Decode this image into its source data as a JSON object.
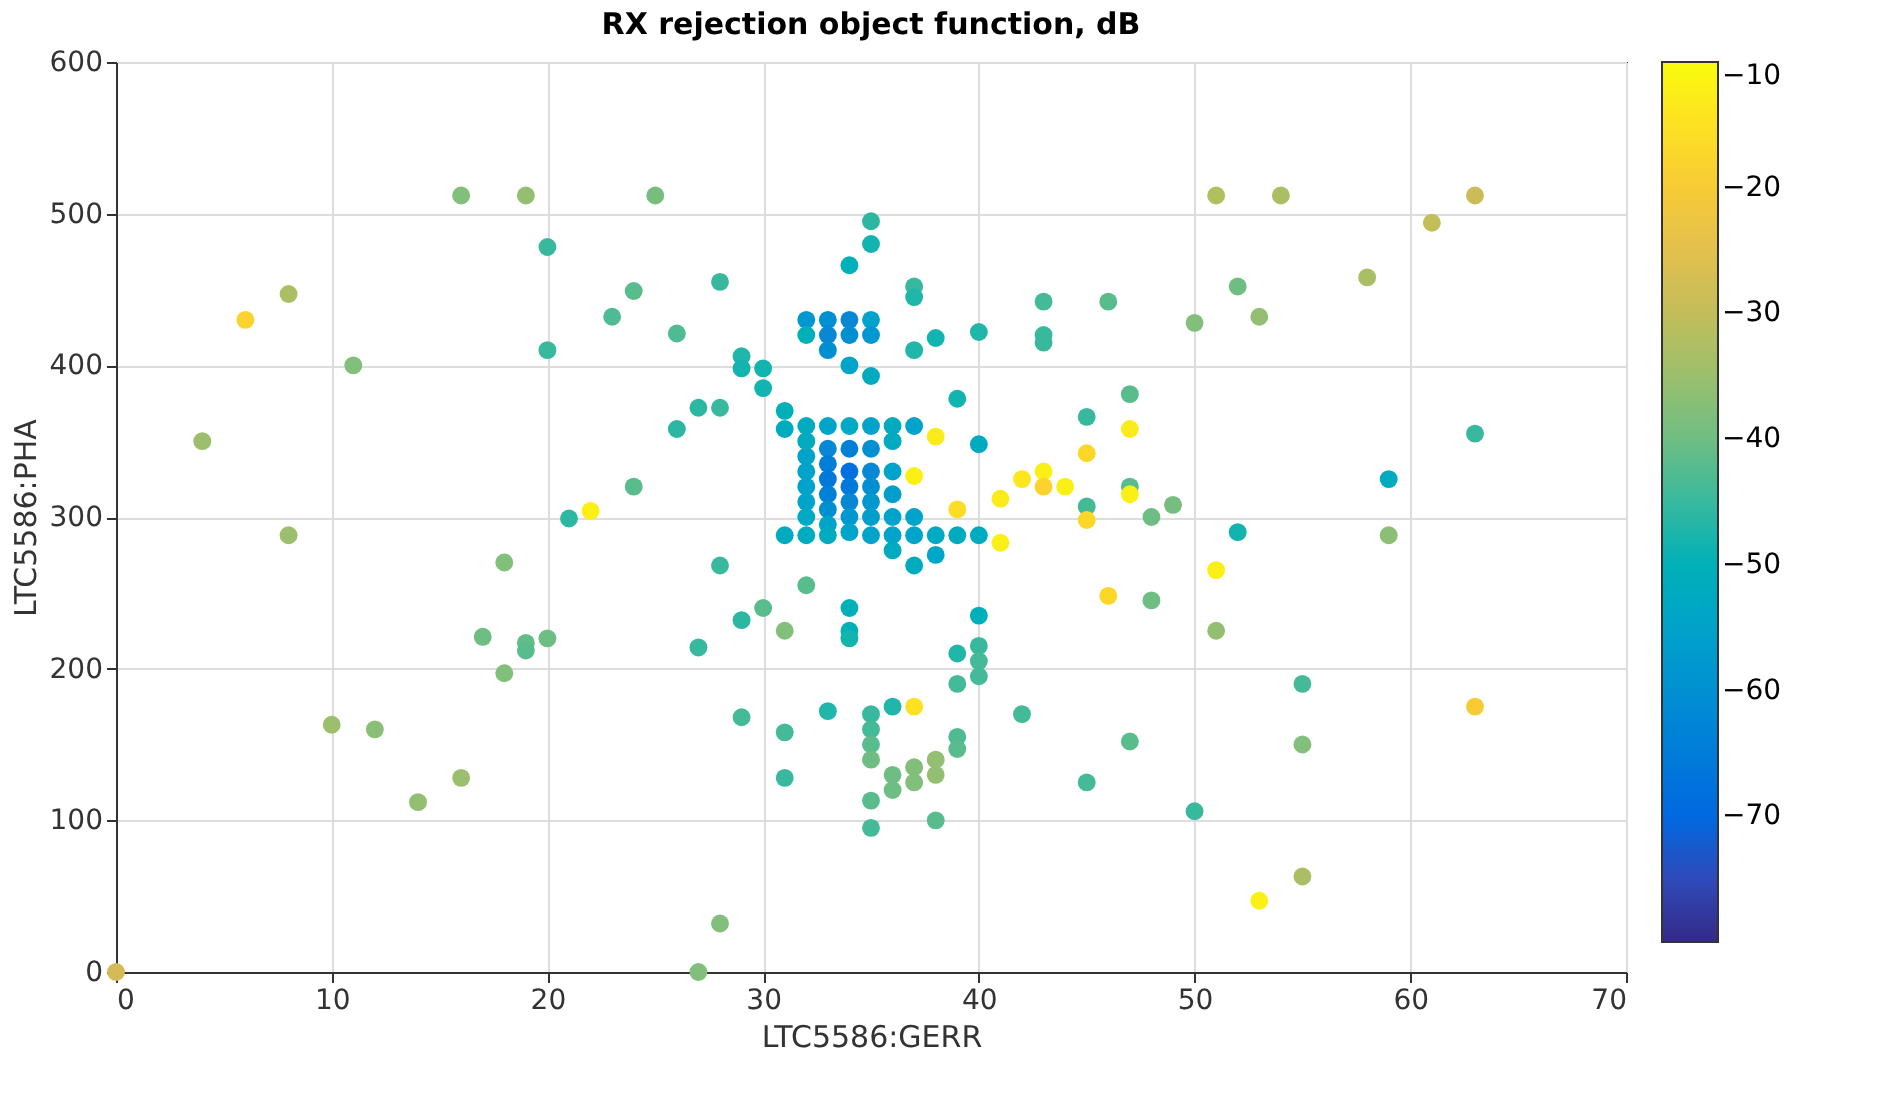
{
  "chart_data": {
    "type": "scatter",
    "title": "RX rejection object function, dB",
    "xlabel": "LTC5586:GERR",
    "ylabel": "LTC5586:PHA",
    "xlim": [
      0,
      70
    ],
    "xticks": [
      0,
      10,
      20,
      30,
      40,
      50,
      60,
      70
    ],
    "ylim": [
      0,
      600
    ],
    "yticks": [
      0,
      100,
      200,
      300,
      400,
      500,
      600
    ],
    "clim": [
      -80,
      -10
    ],
    "cticks": [
      -10,
      -20,
      -30,
      -40,
      -50,
      -60,
      -70
    ],
    "grid": true,
    "x": [
      0,
      4,
      6,
      8,
      8,
      10,
      11,
      12,
      14,
      16,
      16,
      17,
      18,
      18,
      19,
      19,
      19,
      20,
      20,
      20,
      22,
      21,
      23,
      24,
      24,
      25,
      26,
      26,
      27,
      27,
      28,
      28,
      28,
      27,
      28,
      29,
      29,
      29,
      29,
      30,
      30,
      30,
      31,
      31,
      31,
      31,
      31,
      31,
      32,
      32,
      32,
      32,
      33,
      32,
      32,
      32,
      32,
      32,
      32,
      32,
      33,
      33,
      33,
      33,
      33,
      33,
      33,
      33,
      33,
      33,
      33,
      34,
      34,
      34,
      34,
      34,
      34,
      34,
      34,
      34,
      34,
      34,
      34,
      34,
      34,
      35,
      35,
      35,
      35,
      35,
      35,
      35,
      35,
      35,
      35,
      35,
      35,
      35,
      35,
      35,
      35,
      35,
      35,
      36,
      36,
      36,
      36,
      36,
      36,
      36,
      36,
      36,
      36,
      37,
      37,
      37,
      37,
      37,
      37,
      37,
      37,
      37,
      37,
      37,
      38,
      38,
      38,
      38,
      38,
      38,
      38,
      39,
      39,
      39,
      39,
      39,
      39,
      39,
      40,
      40,
      40,
      40,
      40,
      40,
      40,
      41,
      41,
      42,
      42,
      43,
      43,
      43,
      43,
      43,
      44,
      45,
      45,
      45,
      45,
      45,
      46,
      46,
      47,
      47,
      47,
      47,
      47,
      48,
      48,
      49,
      50,
      50,
      51,
      51,
      51,
      52,
      52,
      53,
      53,
      54,
      55,
      55,
      55,
      58,
      59,
      59,
      61,
      63,
      63,
      63
    ],
    "values": [
      0,
      350,
      430,
      447,
      288,
      163,
      400,
      160,
      112,
      128,
      512,
      221,
      270,
      197,
      512,
      217,
      212,
      220,
      478,
      410,
      304,
      299,
      432,
      449,
      320,
      512,
      421,
      358,
      372,
      214,
      455,
      372,
      268,
      0,
      32,
      406,
      398,
      232,
      168,
      385,
      398,
      240,
      370,
      358,
      288,
      225,
      158,
      128,
      255,
      288,
      430,
      420,
      172,
      340,
      330,
      320,
      310,
      300,
      350,
      360,
      430,
      420,
      410,
      360,
      345,
      335,
      325,
      315,
      305,
      295,
      288,
      430,
      420,
      400,
      360,
      345,
      330,
      320,
      310,
      300,
      290,
      240,
      225,
      220,
      466,
      480,
      495,
      430,
      420,
      393,
      360,
      345,
      330,
      320,
      310,
      300,
      288,
      170,
      160,
      150,
      140,
      113,
      95,
      360,
      350,
      330,
      315,
      300,
      288,
      278,
      175,
      130,
      120,
      452,
      445,
      410,
      360,
      327,
      300,
      288,
      268,
      175,
      135,
      125,
      418,
      353,
      288,
      275,
      140,
      130,
      100,
      378,
      305,
      288,
      210,
      190,
      155,
      147,
      422,
      348,
      288,
      235,
      215,
      205,
      195,
      312,
      283,
      325,
      170,
      330,
      320,
      442,
      420,
      415,
      320,
      366,
      342,
      307,
      298,
      125,
      442,
      248,
      381,
      358,
      320,
      315,
      152,
      300,
      245,
      308,
      428,
      106,
      512,
      265,
      225,
      452,
      290,
      432,
      47,
      512,
      190,
      150,
      63,
      458,
      325,
      288,
      494,
      512,
      355,
      175
    ],
    "cvalues": [
      -28,
      -35,
      -18,
      -33,
      -35,
      -35,
      -38,
      -37,
      -36,
      -35,
      -38,
      -40,
      -38,
      -38,
      -36,
      -41,
      -42,
      -40,
      -45,
      -45,
      -12,
      -46,
      -43,
      -42,
      -42,
      -39,
      -43,
      -46,
      -46,
      -45,
      -45,
      -45,
      -45,
      -38,
      -38,
      -47,
      -48,
      -46,
      -44,
      -48,
      -48,
      -42,
      -50,
      -52,
      -52,
      -38,
      -44,
      -45,
      -42,
      -52,
      -58,
      -50,
      -47,
      -55,
      -55,
      -55,
      -55,
      -53,
      -52,
      -52,
      -60,
      -62,
      -60,
      -55,
      -62,
      -65,
      -66,
      -64,
      -60,
      -55,
      -52,
      -62,
      -60,
      -55,
      -53,
      -64,
      -68,
      -66,
      -62,
      -58,
      -55,
      -50,
      -50,
      -48,
      -50,
      -48,
      -46,
      -55,
      -58,
      -52,
      -55,
      -60,
      -62,
      -60,
      -58,
      -56,
      -55,
      -45,
      -44,
      -42,
      -40,
      -42,
      -44,
      -52,
      -52,
      -55,
      -56,
      -55,
      -55,
      -52,
      -47,
      -40,
      -40,
      -45,
      -47,
      -47,
      -55,
      -12,
      -55,
      -55,
      -52,
      -15,
      -38,
      -38,
      -48,
      -13,
      -53,
      -54,
      -36,
      -36,
      -42,
      -48,
      -16,
      -52,
      -47,
      -44,
      -43,
      -42,
      -47,
      -52,
      -52,
      -50,
      -45,
      -44,
      -44,
      -13,
      -12,
      -14,
      -44,
      -12,
      -18,
      -44,
      -45,
      -45,
      -12,
      -45,
      -17,
      -44,
      -17,
      -44,
      -42,
      -17,
      -42,
      -13,
      -42,
      -12,
      -42,
      -40,
      -40,
      -39,
      -38,
      -45,
      -32,
      -12,
      -36,
      -40,
      -48,
      -36,
      -12,
      -33,
      -44,
      -38,
      -33,
      -33,
      -52,
      -37,
      -30,
      -29,
      -45,
      -20
    ]
  }
}
